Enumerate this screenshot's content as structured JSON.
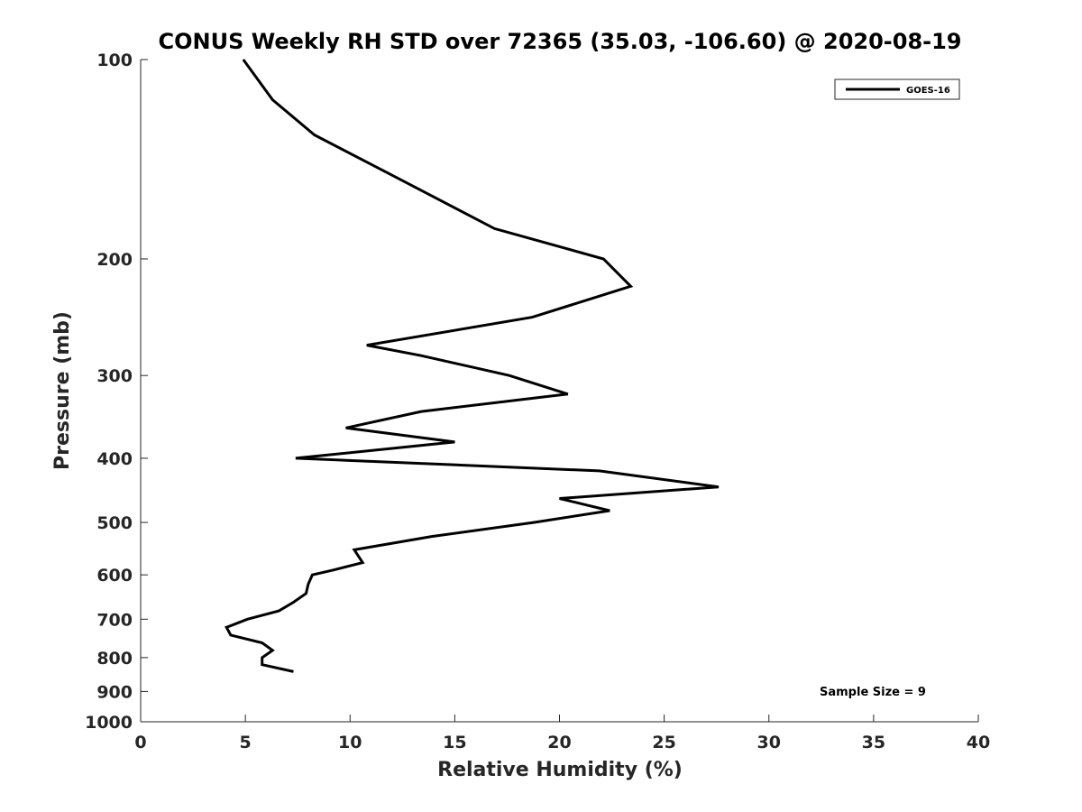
{
  "chart_data": {
    "type": "line",
    "title": "CONUS Weekly RH STD over 72365 (35.03, -106.60) @ 2020-08-19",
    "xlabel": "Relative Humidity (%)",
    "ylabel": "Pressure (mb)",
    "xlim": [
      0,
      40
    ],
    "ylim": [
      1000,
      100
    ],
    "yscale": "log",
    "y_reversed": true,
    "grid": false,
    "legend_position": "top-right",
    "xticks": [
      0,
      5,
      10,
      15,
      20,
      25,
      30,
      35,
      40
    ],
    "yticks": [
      100,
      200,
      300,
      400,
      500,
      600,
      700,
      800,
      900,
      1000
    ],
    "series": [
      {
        "name": "GOES-16",
        "color": "#000000",
        "x": [
          4.9,
          6.3,
          8.3,
          12.1,
          16.9,
          22.1,
          23.4,
          18.7,
          10.8,
          13.4,
          17.6,
          20.4,
          13.4,
          9.8,
          15.0,
          7.4,
          21.9,
          27.6,
          20.0,
          22.4,
          18.8,
          13.9,
          10.2,
          10.6,
          9.2,
          8.2,
          8.0,
          7.9,
          7.3,
          6.6,
          5.1,
          4.1,
          4.3,
          5.8,
          6.3,
          5.8,
          5.8,
          7.3
        ],
        "y": [
          100,
          115,
          130,
          150,
          180,
          200,
          220,
          245,
          270,
          280,
          300,
          320,
          340,
          360,
          378,
          400,
          418,
          442,
          460,
          480,
          500,
          525,
          550,
          575,
          590,
          600,
          620,
          640,
          660,
          680,
          700,
          720,
          740,
          760,
          780,
          800,
          820,
          840
        ]
      }
    ],
    "annotations": [
      "Sample Size = 9"
    ]
  }
}
